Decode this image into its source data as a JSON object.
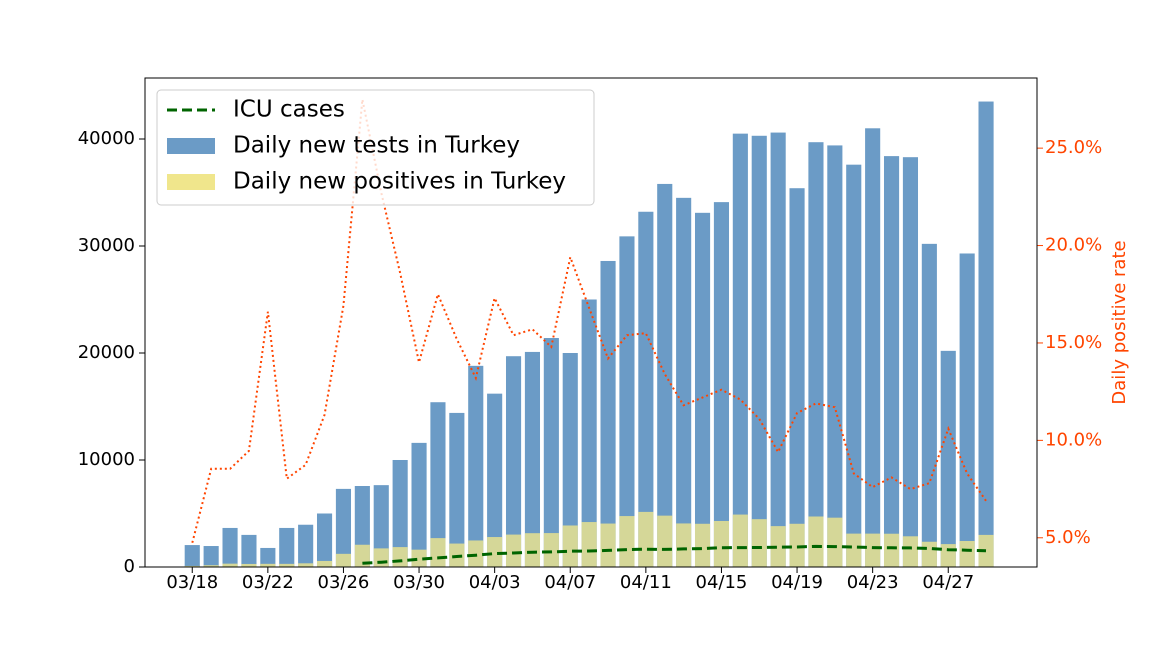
{
  "chart_data": {
    "type": "bar",
    "y2label": "Daily positive rate",
    "categories": [
      "03/18",
      null,
      null,
      null,
      "03/22",
      null,
      null,
      null,
      "03/26",
      null,
      null,
      null,
      "03/30",
      null,
      null,
      null,
      "04/03",
      null,
      null,
      null,
      "04/07",
      null,
      null,
      null,
      "04/11",
      null,
      null,
      null,
      "04/15",
      null,
      null,
      null,
      "04/19",
      null,
      null,
      null,
      "04/23",
      null,
      null,
      null,
      "04/27",
      null,
      null
    ],
    "series": [
      {
        "name": "Daily new tests in Turkey",
        "type": "bar",
        "color": "#6b9bc6",
        "values": [
          2050,
          1960,
          3650,
          3000,
          1780,
          3650,
          3950,
          5000,
          7300,
          7570,
          7650,
          10000,
          11600,
          15400,
          14400,
          18800,
          16200,
          19700,
          20100,
          21400,
          20000,
          25000,
          28600,
          30900,
          33200,
          35800,
          34500,
          33100,
          34100,
          40500,
          40300,
          40600,
          35400,
          39700,
          39400,
          37600,
          41000,
          38400,
          38300,
          30200,
          20200,
          29300,
          43500
        ]
      },
      {
        "name": "Daily new positives in Turkey",
        "type": "bar",
        "color": "#f0e68c",
        "values": [
          100,
          167,
          312,
          284,
          295,
          293,
          345,
          565,
          1230,
          2080,
          1740,
          1860,
          1620,
          2700,
          2190,
          2480,
          2800,
          3030,
          3160,
          3170,
          3880,
          4200,
          4060,
          4760,
          5150,
          4800,
          4070,
          4040,
          4300,
          4900,
          4470,
          3820,
          4040,
          4720,
          4610,
          3120,
          3120,
          3110,
          2870,
          2360,
          2140,
          2430,
          3000
        ]
      },
      {
        "name": "ICU cases",
        "type": "line",
        "color": "#006400",
        "linestyle": "dashed",
        "values": [
          null,
          null,
          null,
          null,
          null,
          null,
          null,
          null,
          null,
          344,
          445,
          568,
          725,
          847,
          979,
          1101,
          1251,
          1311,
          1381,
          1415,
          1474,
          1492,
          1552,
          1626,
          1666,
          1643,
          1693,
          1717,
          1807,
          1812,
          1820,
          1854,
          1865,
          1922,
          1909,
          1865,
          1814,
          1790,
          1782,
          1736,
          1621,
          1574,
          1514
        ]
      },
      {
        "type": "line",
        "axis": "y2",
        "color": "#ff4500",
        "linestyle": "dotted",
        "values": [
          4.74,
          8.54,
          8.54,
          9.46,
          16.6,
          8.03,
          8.74,
          11.3,
          16.9,
          27.5,
          22.7,
          18.6,
          14.0,
          17.5,
          15.2,
          13.2,
          17.3,
          15.4,
          15.7,
          14.8,
          19.4,
          16.8,
          14.2,
          15.4,
          15.5,
          13.4,
          11.8,
          12.2,
          12.6,
          12.1,
          11.1,
          9.4,
          11.4,
          11.9,
          11.7,
          8.3,
          7.6,
          8.1,
          7.5,
          7.8,
          10.6,
          8.3,
          6.9
        ]
      }
    ],
    "ylim": [
      0,
      45700
    ],
    "yticks": [
      0,
      10000,
      20000,
      30000,
      40000
    ],
    "y2lim": [
      3.5,
      28.6
    ],
    "y2ticks": [
      {
        "value": 5,
        "label": "5.0%"
      },
      {
        "value": 10,
        "label": "10.0%"
      },
      {
        "value": 15,
        "label": "15.0%"
      },
      {
        "value": 20,
        "label": "20.0%"
      },
      {
        "value": 25,
        "label": "25.0%"
      }
    ],
    "y2color": "#ff4500",
    "legend": "upper left"
  }
}
